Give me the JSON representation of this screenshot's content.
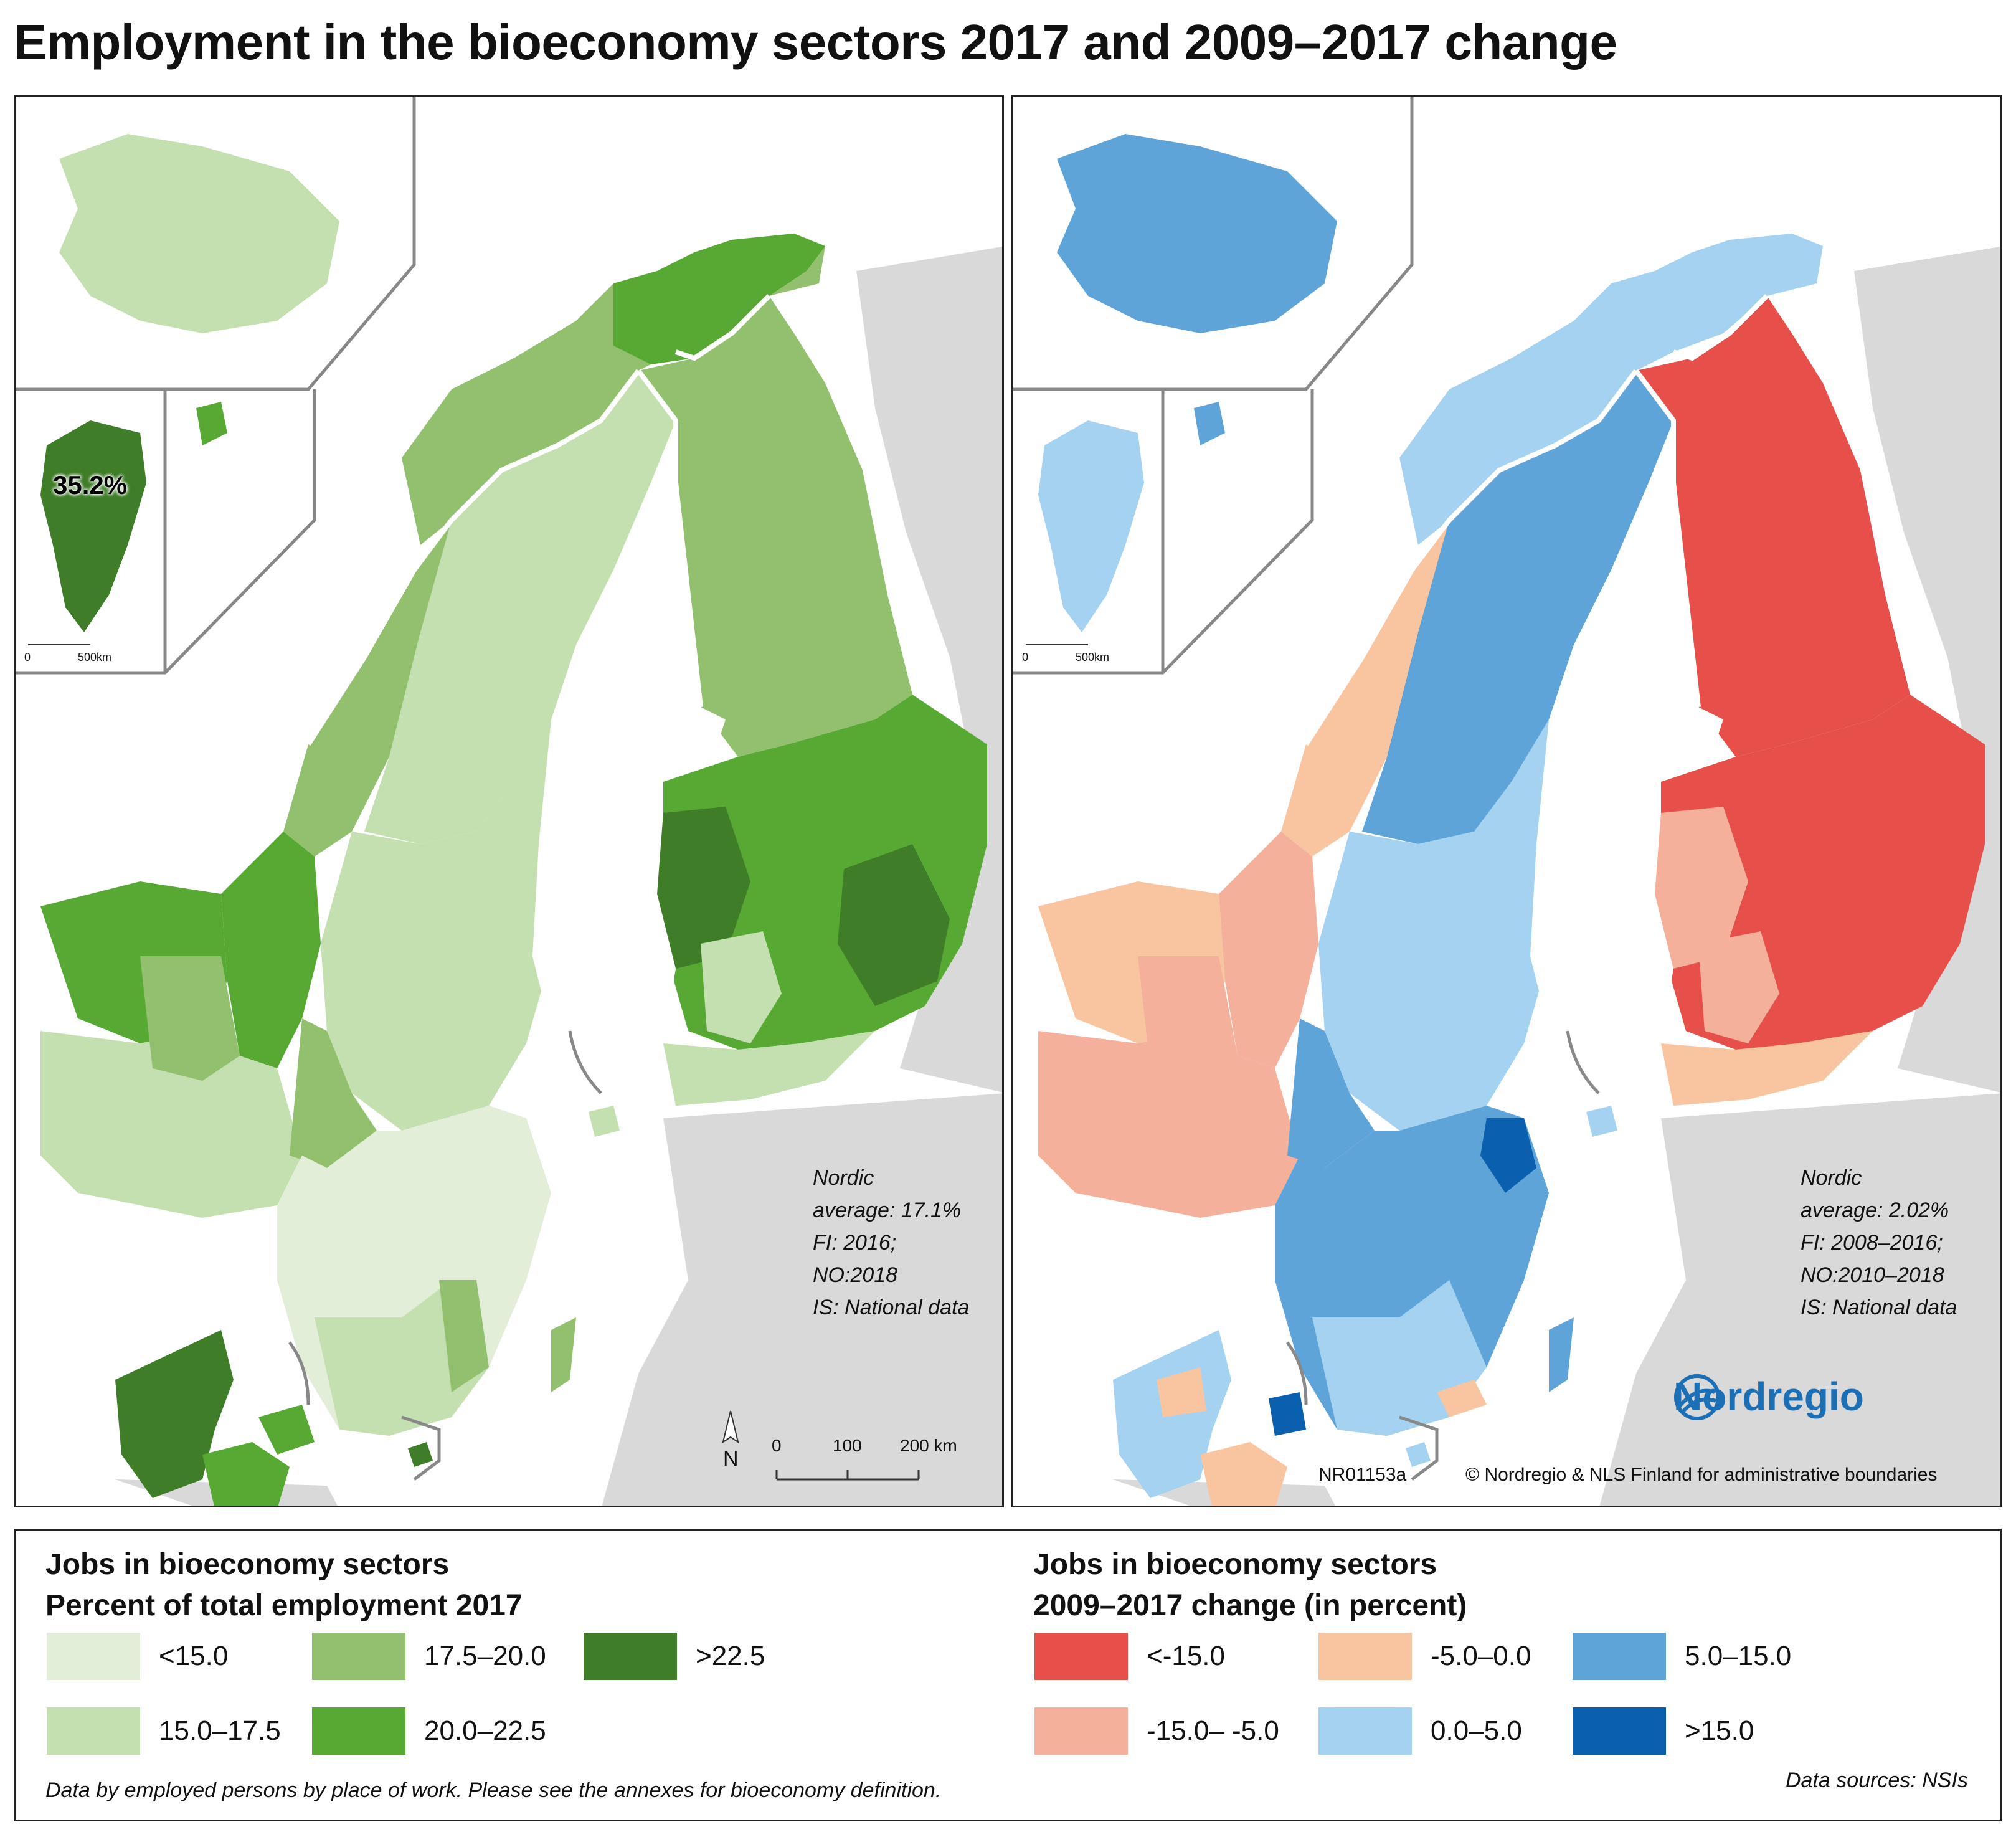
{
  "title": "Employment in the bioeconomy sectors 2017 and 2009–2017 change",
  "left_map": {
    "greenland_value": "35.2%",
    "note_lines": [
      "Nordic",
      "average: 17.1%",
      "FI: 2016;",
      "NO:2018",
      "IS: National data"
    ],
    "inset_scale_zero": "0",
    "inset_scale_label": "500km",
    "scale_labels": [
      "0",
      "100",
      "200 km"
    ],
    "north_label": "N"
  },
  "right_map": {
    "note_lines": [
      "Nordic",
      "average: 2.02%",
      "FI: 2008–2016;",
      "NO:2010–2018",
      "IS: National data"
    ],
    "inset_scale_zero": "0",
    "inset_scale_label": "500km",
    "map_id": "NR01153a",
    "copyright": "© Nordregio & NLS Finland for administrative boundaries",
    "logo_text": "Nordregio",
    "logo_icon": "nordregio-swoosh-icon"
  },
  "legend_left": {
    "title_line1": "Jobs in bioeconomy sectors",
    "title_line2": "Percent of total employment 2017",
    "items": [
      {
        "label": "<15.0",
        "color": "#e3eed9"
      },
      {
        "label": "15.0–17.5",
        "color": "#c4dfb0"
      },
      {
        "label": "17.5–20.0",
        "color": "#93c06f"
      },
      {
        "label": "20.0–22.5",
        "color": "#58a934"
      },
      {
        "label": ">22.5",
        "color": "#3f7d28"
      }
    ]
  },
  "legend_right": {
    "title_line1": "Jobs in bioeconomy sectors",
    "title_line2": "2009–2017 change (in percent)",
    "items": [
      {
        "label": "<-15.0",
        "color": "#e7504a"
      },
      {
        "label": "-15.0– -5.0",
        "color": "#f4b09b"
      },
      {
        "label": "-5.0–0.0",
        "color": "#f8c5a0"
      },
      {
        "label": "0.0–5.0",
        "color": "#a5d2f0"
      },
      {
        "label": "5.0–15.0",
        "color": "#5fa4d9"
      },
      {
        "label": ">15.0",
        "color": "#0a5fae"
      }
    ]
  },
  "footnote_left": "Data by employed persons by place of work. Please see the annexes for bioeconomy definition.",
  "footnote_right": "Data sources: NSIs"
}
